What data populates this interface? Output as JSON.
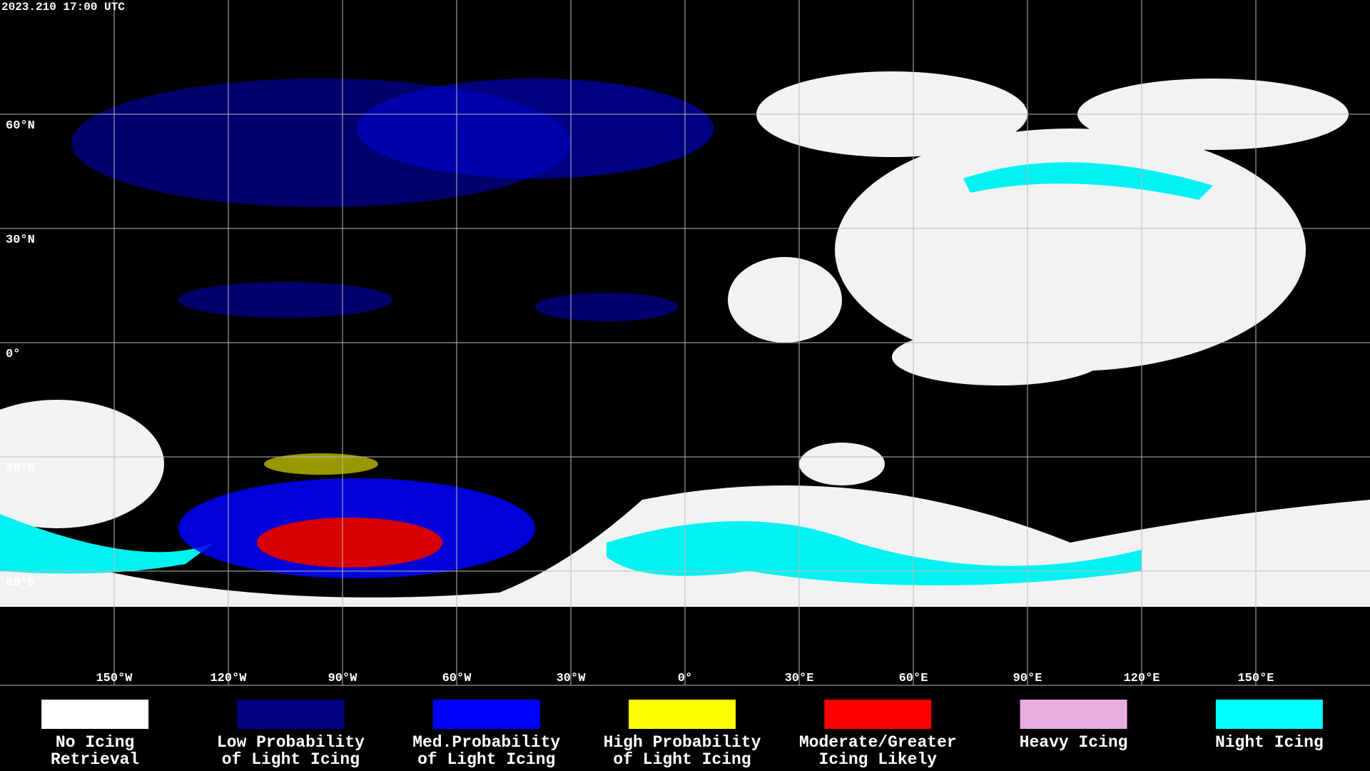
{
  "header": {
    "timestamp": "2023.210 17:00 UTC"
  },
  "map": {
    "lat_labels": [
      "60°N",
      "30°N",
      "0°",
      "30°S",
      "60°S"
    ],
    "lon_labels": [
      "150°W",
      "120°W",
      "90°W",
      "60°W",
      "30°W",
      "0°",
      "30°E",
      "60°E",
      "90°E",
      "120°E",
      "150°E"
    ]
  },
  "legend": [
    {
      "color": "#ffffff",
      "lines": [
        "No Icing",
        "Retrieval"
      ]
    },
    {
      "color": "#000080",
      "lines": [
        "Low Probability",
        "of Light Icing"
      ]
    },
    {
      "color": "#0000ff",
      "lines": [
        "Med.Probability",
        "of Light Icing"
      ]
    },
    {
      "color": "#ffff00",
      "lines": [
        "High Probability",
        "of Light Icing"
      ]
    },
    {
      "color": "#ff0000",
      "lines": [
        "Moderate/Greater",
        "Icing Likely"
      ]
    },
    {
      "color": "#e8aee0",
      "lines": [
        "Heavy Icing"
      ]
    },
    {
      "color": "#00ffff",
      "lines": [
        "Night Icing"
      ]
    }
  ]
}
